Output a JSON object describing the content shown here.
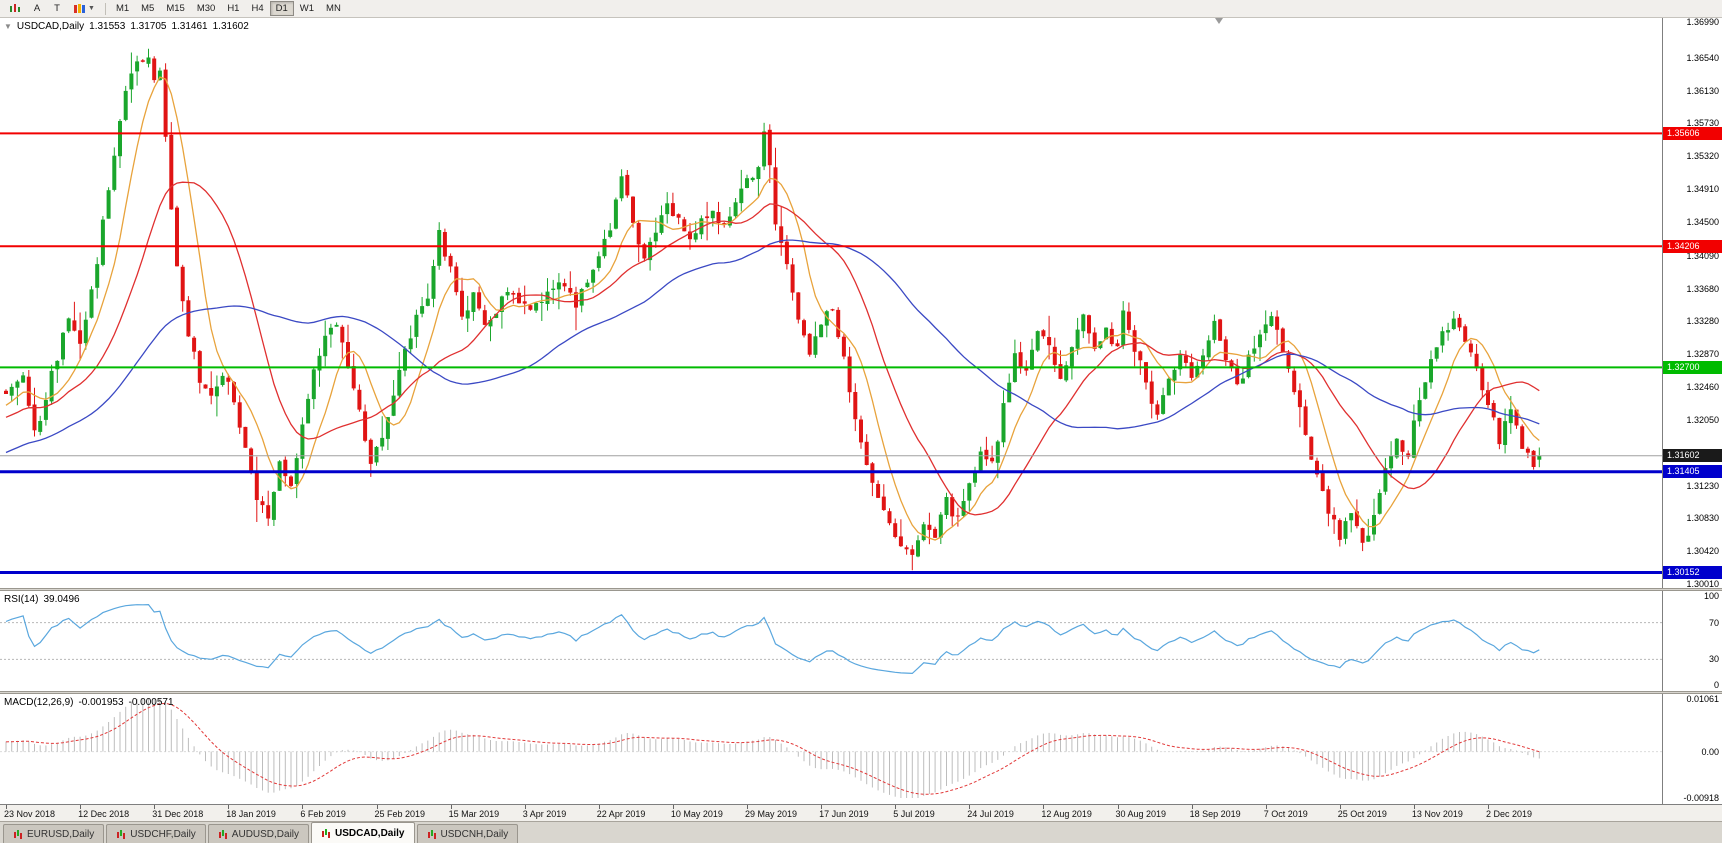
{
  "toolbar": {
    "text_buttons": [
      {
        "label": "A"
      },
      {
        "label": "T"
      }
    ],
    "timeframes": [
      "M1",
      "M5",
      "M15",
      "M30",
      "H1",
      "H4",
      "D1",
      "W1",
      "MN"
    ],
    "active_timeframe": "D1"
  },
  "chart": {
    "symbol_label": "USDCAD,Daily",
    "ohlc": {
      "open": "1.31553",
      "high": "1.31705",
      "low": "1.31461",
      "close": "1.31602"
    },
    "candle_up_color": "#1aa62c",
    "candle_down_color": "#e01414",
    "price_axis_labels": [
      "1.36990",
      "1.36540",
      "1.36130",
      "1.35730",
      "1.35320",
      "1.34910",
      "1.34500",
      "1.34090",
      "1.33680",
      "1.33280",
      "1.32870",
      "1.32460",
      "1.32050",
      "1.31640",
      "1.31230",
      "1.30830",
      "1.30420",
      "1.30010"
    ],
    "hlines": [
      {
        "value": 1.35606,
        "label": "1.35606",
        "color": "#f20000",
        "width": 2
      },
      {
        "value": 1.34206,
        "label": "1.34206",
        "color": "#f20000",
        "width": 2
      },
      {
        "value": 1.327,
        "label": "1.32700",
        "color": "#00bb00",
        "width": 2
      },
      {
        "value": 1.31405,
        "label": "1.31405",
        "color": "#0000cc",
        "width": 3
      },
      {
        "value": 1.30152,
        "label": "1.30152",
        "color": "#0000cc",
        "width": 3
      }
    ],
    "current_price": {
      "value": 1.31602,
      "label": "1.31602",
      "line_color": "#a0a0a0",
      "badge_color": "#1a1a1a"
    }
  },
  "rsi": {
    "name": "RSI(14)",
    "value": "39.0496",
    "period": 14,
    "line_color": "#5aa7de",
    "levels": [
      70,
      30
    ],
    "axis_labels": [
      "100",
      "70",
      "30",
      "0"
    ]
  },
  "macd": {
    "name": "MACD(12,26,9)",
    "value": "-0.001953",
    "signal_value": "-0.000571",
    "fast": 12,
    "slow": 26,
    "signal": 9,
    "histogram_color": "#bdbdbd",
    "signal_color": "#e23a3a",
    "axis_labels": [
      "0.01061",
      "0.00",
      "-0.00918"
    ]
  },
  "tabs": [
    {
      "label": "EURUSD,Daily",
      "active": false
    },
    {
      "label": "USDCHF,Daily",
      "active": false
    },
    {
      "label": "AUDUSD,Daily",
      "active": false
    },
    {
      "label": "USDCAD,Daily",
      "active": true
    },
    {
      "label": "USDCNH,Daily",
      "active": false
    }
  ],
  "chart_data": {
    "type": "candlestick",
    "symbol": "USDCAD",
    "timeframe": "Daily",
    "candle_count": 270,
    "label_step": 13,
    "x_labels": [
      "23 Nov 2018",
      "12 Dec 2018",
      "31 Dec 2018",
      "18 Jan 2019",
      "6 Feb 2019",
      "25 Feb 2019",
      "15 Mar 2019",
      "3 Apr 2019",
      "22 Apr 2019",
      "10 May 2019",
      "29 May 2019",
      "17 Jun 2019",
      "5 Jul 2019",
      "24 Jul 2019",
      "12 Aug 2019",
      "30 Aug 2019",
      "18 Sep 2019",
      "7 Oct 2019",
      "25 Oct 2019",
      "13 Nov 2019",
      "2 Dec 2019"
    ],
    "y_range": {
      "max": 1.3704,
      "min": 1.2996
    },
    "seed": 20191217,
    "prehistory_bars": 60,
    "prehistory_start": 1.306,
    "moving_averages": [
      {
        "period": 8,
        "type": "sma",
        "color": "#e8a33c"
      },
      {
        "period": 20,
        "type": "sma",
        "color": "#e03030"
      },
      {
        "period": 50,
        "type": "sma",
        "color": "#3b49c4"
      }
    ],
    "close_anchors": [
      [
        0,
        1.3235
      ],
      [
        3,
        1.3262
      ],
      [
        5,
        1.3185
      ],
      [
        8,
        1.3262
      ],
      [
        11,
        1.3328
      ],
      [
        13,
        1.3298
      ],
      [
        15,
        1.336
      ],
      [
        17,
        1.3448
      ],
      [
        19,
        1.3532
      ],
      [
        21,
        1.3615
      ],
      [
        23,
        1.3652
      ],
      [
        25,
        1.366
      ],
      [
        26,
        1.3622
      ],
      [
        27,
        1.3638
      ],
      [
        28,
        1.3558
      ],
      [
        29,
        1.3465
      ],
      [
        30,
        1.3392
      ],
      [
        32,
        1.331
      ],
      [
        34,
        1.3255
      ],
      [
        36,
        1.3228
      ],
      [
        38,
        1.3262
      ],
      [
        40,
        1.3232
      ],
      [
        42,
        1.3168
      ],
      [
        44,
        1.3108
      ],
      [
        46,
        1.3085
      ],
      [
        48,
        1.3152
      ],
      [
        50,
        1.3125
      ],
      [
        52,
        1.3202
      ],
      [
        54,
        1.3268
      ],
      [
        56,
        1.3308
      ],
      [
        58,
        1.3325
      ],
      [
        60,
        1.327
      ],
      [
        62,
        1.3212
      ],
      [
        64,
        1.3155
      ],
      [
        66,
        1.3182
      ],
      [
        68,
        1.3238
      ],
      [
        70,
        1.3292
      ],
      [
        72,
        1.3332
      ],
      [
        74,
        1.336
      ],
      [
        76,
        1.344
      ],
      [
        78,
        1.3388
      ],
      [
        80,
        1.3332
      ],
      [
        82,
        1.3356
      ],
      [
        84,
        1.3322
      ],
      [
        86,
        1.3342
      ],
      [
        88,
        1.337
      ],
      [
        90,
        1.3348
      ],
      [
        92,
        1.334
      ],
      [
        94,
        1.3352
      ],
      [
        97,
        1.3372
      ],
      [
        100,
        1.3348
      ],
      [
        103,
        1.3392
      ],
      [
        106,
        1.3442
      ],
      [
        108,
        1.3502
      ],
      [
        110,
        1.3452
      ],
      [
        112,
        1.3402
      ],
      [
        114,
        1.3442
      ],
      [
        116,
        1.3472
      ],
      [
        118,
        1.3452
      ],
      [
        120,
        1.3422
      ],
      [
        122,
        1.3448
      ],
      [
        124,
        1.3468
      ],
      [
        126,
        1.3442
      ],
      [
        128,
        1.3482
      ],
      [
        130,
        1.3502
      ],
      [
        132,
        1.3522
      ],
      [
        133,
        1.3556
      ],
      [
        134,
        1.352
      ],
      [
        135,
        1.3452
      ],
      [
        137,
        1.3392
      ],
      [
        139,
        1.3332
      ],
      [
        141,
        1.3292
      ],
      [
        143,
        1.3322
      ],
      [
        145,
        1.3346
      ],
      [
        147,
        1.3282
      ],
      [
        149,
        1.3202
      ],
      [
        151,
        1.3142
      ],
      [
        153,
        1.3102
      ],
      [
        155,
        1.3072
      ],
      [
        157,
        1.3046
      ],
      [
        159,
        1.3032
      ],
      [
        161,
        1.3082
      ],
      [
        163,
        1.3062
      ],
      [
        165,
        1.3102
      ],
      [
        167,
        1.3082
      ],
      [
        169,
        1.3122
      ],
      [
        171,
        1.3166
      ],
      [
        173,
        1.3146
      ],
      [
        175,
        1.3222
      ],
      [
        177,
        1.3292
      ],
      [
        179,
        1.3262
      ],
      [
        181,
        1.3322
      ],
      [
        183,
        1.3292
      ],
      [
        185,
        1.3256
      ],
      [
        187,
        1.3302
      ],
      [
        189,
        1.3332
      ],
      [
        191,
        1.3292
      ],
      [
        193,
        1.3312
      ],
      [
        195,
        1.3292
      ],
      [
        196,
        1.3342
      ],
      [
        198,
        1.3292
      ],
      [
        200,
        1.3252
      ],
      [
        202,
        1.3212
      ],
      [
        204,
        1.3252
      ],
      [
        206,
        1.3292
      ],
      [
        208,
        1.3256
      ],
      [
        210,
        1.3292
      ],
      [
        212,
        1.3322
      ],
      [
        214,
        1.3282
      ],
      [
        216,
        1.3242
      ],
      [
        218,
        1.3282
      ],
      [
        220,
        1.3312
      ],
      [
        222,
        1.3332
      ],
      [
        224,
        1.3292
      ],
      [
        226,
        1.3242
      ],
      [
        228,
        1.3192
      ],
      [
        230,
        1.3132
      ],
      [
        232,
        1.3092
      ],
      [
        234,
        1.3062
      ],
      [
        236,
        1.3082
      ],
      [
        238,
        1.3052
      ],
      [
        240,
        1.3082
      ],
      [
        242,
        1.3142
      ],
      [
        244,
        1.3182
      ],
      [
        246,
        1.3162
      ],
      [
        248,
        1.3232
      ],
      [
        250,
        1.3282
      ],
      [
        252,
        1.3312
      ],
      [
        254,
        1.3332
      ],
      [
        256,
        1.3302
      ],
      [
        258,
        1.3262
      ],
      [
        260,
        1.3222
      ],
      [
        262,
        1.3182
      ],
      [
        264,
        1.3212
      ],
      [
        266,
        1.3172
      ],
      [
        268,
        1.3142
      ],
      [
        269,
        1.316
      ]
    ]
  }
}
